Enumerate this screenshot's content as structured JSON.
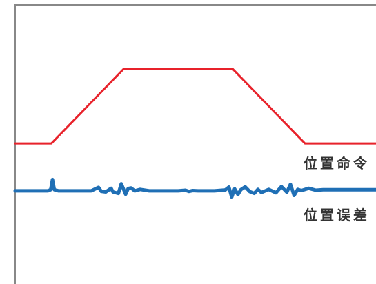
{
  "chart_data": {
    "type": "line",
    "title": "",
    "xlabel": "",
    "ylabel": "",
    "xlim": [
      0,
      100
    ],
    "ylim": [
      0,
      100
    ],
    "grid": false,
    "series": [
      {
        "name": "位置命令",
        "color": "#e8222b",
        "x": [
          0,
          10,
          30,
          60,
          80,
          100
        ],
        "y": [
          49.5,
          49.5,
          75.8,
          75.8,
          49.5,
          49.5
        ]
      },
      {
        "name": "位置误差",
        "color": "#1f6fb5",
        "x": [
          0,
          9,
          9.8,
          10.3,
          10.8,
          12,
          21,
          23,
          23.8,
          25,
          26.5,
          27,
          28.5,
          29.3,
          30.5,
          31.2,
          32,
          33,
          34.5,
          37,
          45,
          47,
          48,
          49,
          50.5,
          55,
          58,
          59,
          59.8,
          60.6,
          61.5,
          62.3,
          63.5,
          64.8,
          66,
          67,
          68,
          70,
          72,
          73.5,
          75,
          76,
          77,
          78,
          79,
          81,
          83,
          85,
          100
        ],
        "y": [
          32.8,
          32.8,
          33.2,
          36.8,
          33.2,
          32.8,
          32.8,
          34,
          32.6,
          32.4,
          33.7,
          32.4,
          31.9,
          35.3,
          31.6,
          33.6,
          33.8,
          32.8,
          33.3,
          32.8,
          32.8,
          33,
          32.6,
          32.9,
          32.8,
          32.8,
          33.1,
          34.1,
          30.6,
          33.5,
          31.5,
          33.2,
          34.2,
          32.5,
          31.9,
          33.3,
          32.2,
          33.3,
          32.1,
          34.3,
          32.3,
          35.1,
          31.2,
          33.3,
          32.9,
          33.7,
          33,
          33.2,
          33.2
        ]
      }
    ]
  }
}
